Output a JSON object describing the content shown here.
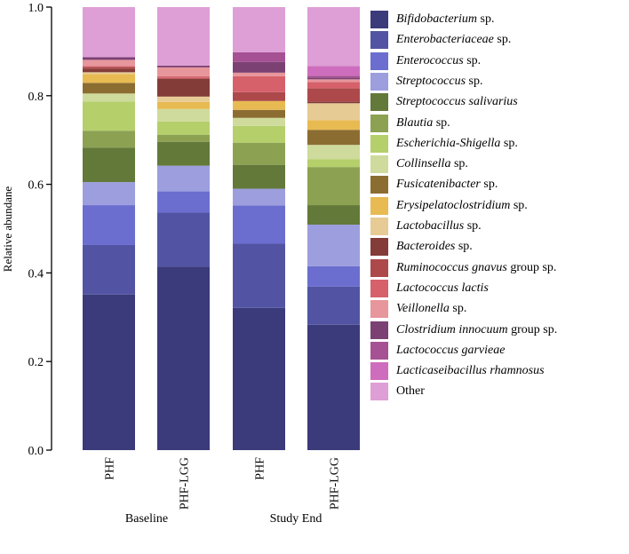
{
  "chart_data": {
    "type": "bar",
    "stacked": true,
    "title": "",
    "xlabel": "",
    "ylabel": "Relative abundane",
    "ylim": [
      0,
      1.0
    ],
    "yticks": [
      "0.0",
      "0.2",
      "0.4",
      "0.6",
      "0.8",
      "1.0"
    ],
    "legend_position": "right",
    "groups": [
      {
        "label": "Baseline",
        "categories": [
          "PHF",
          "PHF-LGG"
        ]
      },
      {
        "label": "Study End",
        "categories": [
          "PHF",
          "PHF-LGG"
        ]
      }
    ],
    "categories": [
      "PHF",
      "PHF-LGG",
      "PHF",
      "PHF-LGG"
    ],
    "series": [
      {
        "italic": "Bifidobacterium",
        "suffix": " sp.",
        "color": "#3b3a7a",
        "values": [
          0.351,
          0.414,
          0.321,
          0.283
        ]
      },
      {
        "italic": "Enterobacteriaceae",
        "suffix": " sp.",
        "color": "#5254a3",
        "values": [
          0.112,
          0.122,
          0.145,
          0.086
        ]
      },
      {
        "italic": "Enterococcus",
        "suffix": " sp.",
        "color": "#6b6ecf",
        "values": [
          0.09,
          0.048,
          0.086,
          0.046
        ]
      },
      {
        "italic": "Streptococcus",
        "suffix": " sp.",
        "color": "#9c9ede",
        "values": [
          0.052,
          0.058,
          0.038,
          0.094
        ]
      },
      {
        "italic": "Streptococcus salivarius",
        "suffix": "",
        "color": "#637939",
        "values": [
          0.078,
          0.054,
          0.054,
          0.044
        ]
      },
      {
        "italic": "Blautia",
        "suffix": " sp.",
        "color": "#8ca252",
        "values": [
          0.038,
          0.016,
          0.05,
          0.086
        ]
      },
      {
        "italic": "Escherichia-Shigella",
        "suffix": " sp.",
        "color": "#b5cf6b",
        "values": [
          0.066,
          0.03,
          0.038,
          0.018
        ]
      },
      {
        "italic": "Collinsella",
        "suffix": " sp.",
        "color": "#cedb9c",
        "values": [
          0.018,
          0.028,
          0.018,
          0.032
        ]
      },
      {
        "italic": "Fusicatenibacter",
        "suffix": " sp.",
        "color": "#8c6d31",
        "values": [
          0.024,
          0.0,
          0.018,
          0.034
        ]
      },
      {
        "italic": "Erysipelatoclostridium",
        "suffix": " sp.",
        "color": "#e7ba52",
        "values": [
          0.02,
          0.016,
          0.02,
          0.022
        ]
      },
      {
        "italic": "Lactobacillus",
        "suffix": " sp.",
        "color": "#e7cb94",
        "values": [
          0.004,
          0.012,
          0.0,
          0.038
        ]
      },
      {
        "italic": "Bacteroides",
        "suffix": " sp.",
        "color": "#843c39",
        "values": [
          0.008,
          0.04,
          0.0,
          0.004
        ]
      },
      {
        "italic": "Ruminococcus gnavus",
        "suffix": " group sp.",
        "color": "#ad494a",
        "values": [
          0.004,
          0.002,
          0.02,
          0.03
        ]
      },
      {
        "italic": "Lactococcus lactis",
        "suffix": "",
        "color": "#d6616b",
        "values": [
          0.002,
          0.004,
          0.036,
          0.014
        ]
      },
      {
        "italic": "Veillonella",
        "suffix": " sp.",
        "color": "#e7969c",
        "values": [
          0.014,
          0.02,
          0.008,
          0.006
        ]
      },
      {
        "italic": "Clostridium innocuum",
        "suffix": " group sp.",
        "color": "#7b4173",
        "values": [
          0.006,
          0.004,
          0.024,
          0.004
        ]
      },
      {
        "italic": "Lactococcus garvieae",
        "suffix": "",
        "color": "#a55194",
        "values": [
          0.0,
          0.0,
          0.022,
          0.004
        ]
      },
      {
        "italic": "Lacticaseibacillus rhamnosus",
        "suffix": "",
        "color": "#ce6dbd",
        "values": [
          0.0,
          0.0,
          0.0,
          0.022
        ]
      },
      {
        "italic": "",
        "suffix": "Other",
        "color": "#de9ed6",
        "values": [
          0.113,
          0.132,
          0.102,
          0.133
        ]
      }
    ]
  }
}
